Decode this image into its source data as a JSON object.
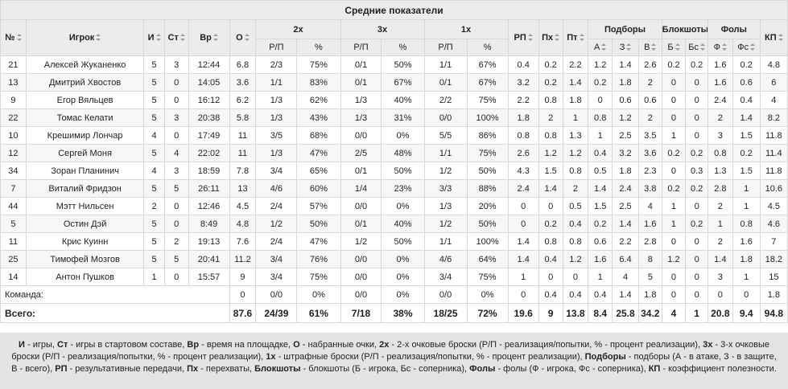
{
  "title": "Средние показатели",
  "headers": {
    "num": "№",
    "player": "Игрок",
    "games": "И",
    "starts": "Ст",
    "time": "Вр",
    "points": "О",
    "two": "2х",
    "three": "3х",
    "one": "1х",
    "made_att": "Р/П",
    "pct": "%",
    "assists": "РП",
    "steals": "Пх",
    "turnovers": "Пт",
    "rebounds": "Подборы",
    "reb_off": "А",
    "reb_def": "З",
    "reb_tot": "В",
    "blocks": "Блокшоты",
    "blk_for": "Б",
    "blk_against": "Бс",
    "fouls": "Фолы",
    "foul_made": "Ф",
    "foul_drawn": "Фс",
    "efficiency": "КП"
  },
  "players": [
    {
      "num": "21",
      "name": "Алексей Жуканенко",
      "g": "5",
      "gs": "3",
      "min": "12:44",
      "pts": "6.8",
      "p2": "2/3",
      "p2pct": "75%",
      "p3": "0/1",
      "p3pct": "50%",
      "ft": "1/1",
      "ftpct": "67%",
      "ast": "0.4",
      "stl": "0.2",
      "to": "2.2",
      "ro": "1.2",
      "rd": "1.4",
      "rt": "2.6",
      "blk": "0.2",
      "blka": "0.2",
      "pf": "1.6",
      "fd": "0.2",
      "eff": "4.8"
    },
    {
      "num": "13",
      "name": "Дмитрий Хвостов",
      "g": "5",
      "gs": "0",
      "min": "14:05",
      "pts": "3.6",
      "p2": "1/1",
      "p2pct": "83%",
      "p3": "0/1",
      "p3pct": "67%",
      "ft": "0/1",
      "ftpct": "67%",
      "ast": "3.2",
      "stl": "0.2",
      "to": "1.4",
      "ro": "0.2",
      "rd": "1.8",
      "rt": "2",
      "blk": "0",
      "blka": "0",
      "pf": "1.6",
      "fd": "0.6",
      "eff": "6"
    },
    {
      "num": "9",
      "name": "Егор Вяльцев",
      "g": "5",
      "gs": "0",
      "min": "16:12",
      "pts": "6.2",
      "p2": "1/3",
      "p2pct": "62%",
      "p3": "1/3",
      "p3pct": "40%",
      "ft": "2/2",
      "ftpct": "75%",
      "ast": "2.2",
      "stl": "0.8",
      "to": "1.8",
      "ro": "0",
      "rd": "0.6",
      "rt": "0.6",
      "blk": "0",
      "blka": "0",
      "pf": "2.4",
      "fd": "0.4",
      "eff": "4"
    },
    {
      "num": "22",
      "name": "Томас Келати",
      "g": "5",
      "gs": "3",
      "min": "20:38",
      "pts": "5.8",
      "p2": "1/3",
      "p2pct": "43%",
      "p3": "1/3",
      "p3pct": "31%",
      "ft": "0/0",
      "ftpct": "100%",
      "ast": "1.8",
      "stl": "2",
      "to": "1",
      "ro": "0.8",
      "rd": "1.2",
      "rt": "2",
      "blk": "0",
      "blka": "0",
      "pf": "2",
      "fd": "1.4",
      "eff": "8.2"
    },
    {
      "num": "10",
      "name": "Крешимир Лончар",
      "g": "4",
      "gs": "0",
      "min": "17:49",
      "pts": "11",
      "p2": "3/5",
      "p2pct": "68%",
      "p3": "0/0",
      "p3pct": "0%",
      "ft": "5/5",
      "ftpct": "86%",
      "ast": "0.8",
      "stl": "0.8",
      "to": "1.3",
      "ro": "1",
      "rd": "2.5",
      "rt": "3.5",
      "blk": "1",
      "blka": "0",
      "pf": "3",
      "fd": "1.5",
      "eff": "11.8"
    },
    {
      "num": "12",
      "name": "Сергей Моня",
      "g": "5",
      "gs": "4",
      "min": "22:02",
      "pts": "11",
      "p2": "1/3",
      "p2pct": "47%",
      "p3": "2/5",
      "p3pct": "48%",
      "ft": "1/1",
      "ftpct": "75%",
      "ast": "2.6",
      "stl": "1.2",
      "to": "1.2",
      "ro": "0.4",
      "rd": "3.2",
      "rt": "3.6",
      "blk": "0.2",
      "blka": "0.2",
      "pf": "0.8",
      "fd": "0.2",
      "eff": "11.4"
    },
    {
      "num": "34",
      "name": "Зоран Планинич",
      "g": "4",
      "gs": "3",
      "min": "18:59",
      "pts": "7.8",
      "p2": "3/4",
      "p2pct": "65%",
      "p3": "0/1",
      "p3pct": "50%",
      "ft": "1/2",
      "ftpct": "50%",
      "ast": "4.3",
      "stl": "1.5",
      "to": "0.8",
      "ro": "0.5",
      "rd": "1.8",
      "rt": "2.3",
      "blk": "0",
      "blka": "0.3",
      "pf": "1.3",
      "fd": "1.5",
      "eff": "11.8"
    },
    {
      "num": "7",
      "name": "Виталий Фридзон",
      "g": "5",
      "gs": "5",
      "min": "26:11",
      "pts": "13",
      "p2": "4/6",
      "p2pct": "60%",
      "p3": "1/4",
      "p3pct": "23%",
      "ft": "3/3",
      "ftpct": "88%",
      "ast": "2.4",
      "stl": "1.4",
      "to": "2",
      "ro": "1.4",
      "rd": "2.4",
      "rt": "3.8",
      "blk": "0.2",
      "blka": "0.2",
      "pf": "2.8",
      "fd": "1",
      "eff": "10.6"
    },
    {
      "num": "44",
      "name": "Мэтт Нильсен",
      "g": "2",
      "gs": "0",
      "min": "12:46",
      "pts": "4.5",
      "p2": "2/4",
      "p2pct": "57%",
      "p3": "0/0",
      "p3pct": "0%",
      "ft": "1/3",
      "ftpct": "20%",
      "ast": "0",
      "stl": "0",
      "to": "0.5",
      "ro": "1.5",
      "rd": "2.5",
      "rt": "4",
      "blk": "1",
      "blka": "0",
      "pf": "2",
      "fd": "1",
      "eff": "4.5"
    },
    {
      "num": "5",
      "name": "Остин Дэй",
      "g": "5",
      "gs": "0",
      "min": "8:49",
      "pts": "4.8",
      "p2": "1/2",
      "p2pct": "50%",
      "p3": "0/1",
      "p3pct": "40%",
      "ft": "1/2",
      "ftpct": "50%",
      "ast": "0",
      "stl": "0.2",
      "to": "0.4",
      "ro": "0.2",
      "rd": "1.4",
      "rt": "1.6",
      "blk": "1",
      "blka": "0.2",
      "pf": "1",
      "fd": "0.8",
      "eff": "4.6"
    },
    {
      "num": "11",
      "name": "Крис Куинн",
      "g": "5",
      "gs": "2",
      "min": "19:13",
      "pts": "7.6",
      "p2": "2/4",
      "p2pct": "47%",
      "p3": "1/2",
      "p3pct": "50%",
      "ft": "1/1",
      "ftpct": "100%",
      "ast": "1.4",
      "stl": "0.8",
      "to": "0.8",
      "ro": "0.6",
      "rd": "2.2",
      "rt": "2.8",
      "blk": "0",
      "blka": "0",
      "pf": "2",
      "fd": "1.6",
      "eff": "7"
    },
    {
      "num": "25",
      "name": "Тимофей Мозгов",
      "g": "5",
      "gs": "5",
      "min": "20:41",
      "pts": "11.2",
      "p2": "3/4",
      "p2pct": "76%",
      "p3": "0/0",
      "p3pct": "0%",
      "ft": "4/6",
      "ftpct": "64%",
      "ast": "1.4",
      "stl": "0.4",
      "to": "1.2",
      "ro": "1.6",
      "rd": "6.4",
      "rt": "8",
      "blk": "1.2",
      "blka": "0",
      "pf": "1.4",
      "fd": "1.8",
      "eff": "18.2"
    },
    {
      "num": "14",
      "name": "Антон Пушков",
      "g": "1",
      "gs": "0",
      "min": "15:57",
      "pts": "9",
      "p2": "3/4",
      "p2pct": "75%",
      "p3": "0/0",
      "p3pct": "0%",
      "ft": "3/4",
      "ftpct": "75%",
      "ast": "1",
      "stl": "0",
      "to": "0",
      "ro": "1",
      "rd": "4",
      "rt": "5",
      "blk": "0",
      "blka": "0",
      "pf": "3",
      "fd": "1",
      "eff": "15"
    }
  ],
  "team": {
    "label": "Команда:",
    "pts": "0",
    "p2": "0/0",
    "p2pct": "0%",
    "p3": "0/0",
    "p3pct": "0%",
    "ft": "0/0",
    "ftpct": "0%",
    "ast": "0",
    "stl": "0.4",
    "to": "0.4",
    "ro": "0.4",
    "rd": "1.4",
    "rt": "1.8",
    "blk": "0",
    "blka": "0",
    "pf": "0",
    "fd": "0",
    "eff": "1.8"
  },
  "total": {
    "label": "Всего:",
    "pts": "87.6",
    "p2": "24/39",
    "p2pct": "61%",
    "p3": "7/18",
    "p3pct": "38%",
    "ft": "18/25",
    "ftpct": "72%",
    "ast": "19.6",
    "stl": "9",
    "to": "13.8",
    "ro": "8.4",
    "rd": "25.8",
    "rt": "34.2",
    "blk": "4",
    "blka": "1",
    "pf": "20.8",
    "fd": "9.4",
    "eff": "94.8"
  },
  "legend": [
    {
      "b": "И",
      "t": " - игры, "
    },
    {
      "b": "Ст",
      "t": " - игры в стартовом составе, "
    },
    {
      "b": "Вр",
      "t": " - время на площадке, "
    },
    {
      "b": "О",
      "t": " - набранные очки, "
    },
    {
      "b": "2х",
      "t": " - 2-х очковые броски (Р/П - реализация/попытки, % - процент реализации), "
    },
    {
      "b": "3х",
      "t": " - 3-х очковые броски (Р/П - реализация/попытки, % - процент реализации), "
    },
    {
      "b": "1х",
      "t": " - штрафные броски (Р/П - реализация/попытки, % - процент реализации), "
    },
    {
      "b": "Подборы",
      "t": " - подборы (А - в атаке, З - в защите, В - всего), "
    },
    {
      "b": "РП",
      "t": " - результативные передачи, "
    },
    {
      "b": "Пх",
      "t": " - перехваты, "
    },
    {
      "b": "Блокшоты",
      "t": " - блокшоты (Б - игрока, Бс - соперника), "
    },
    {
      "b": "Фолы",
      "t": " - фолы (Ф - игрока, Фс - соперника), "
    },
    {
      "b": "КП",
      "t": " - коэффициент полезности."
    }
  ]
}
